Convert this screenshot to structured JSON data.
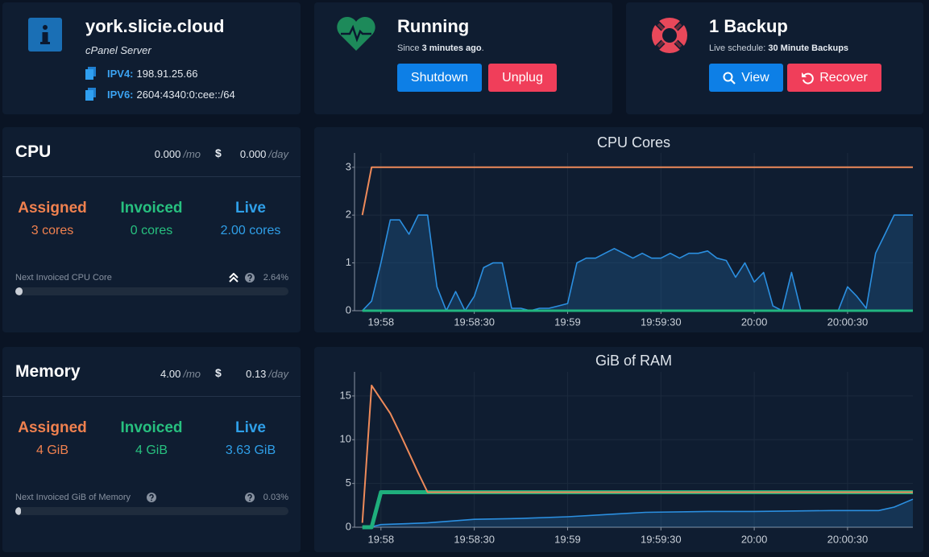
{
  "server": {
    "title": "york.slicie.cloud",
    "subtitle": "cPanel Server",
    "ipv4": {
      "label": "IPV4:",
      "value": "198.91.25.66"
    },
    "ipv6": {
      "label": "IPV6:",
      "value": "2604:4340:0:cee::/64"
    }
  },
  "status": {
    "title": "Running",
    "since_prefix": "Since",
    "since_value": "3 minutes ago",
    "since_suffix": ".",
    "buttons": [
      "Shutdown",
      "Unplug"
    ]
  },
  "backup": {
    "title": "1 Backup",
    "schedule_label": "Live schedule:",
    "schedule_value": "30 Minute Backups",
    "buttons": [
      "View",
      "Recover"
    ]
  },
  "cpu": {
    "title": "CPU",
    "monthly": "0.000",
    "monthly_unit": "/mo",
    "currency": "$",
    "daily": "0.000",
    "daily_unit": "/day",
    "stats": [
      {
        "label": "Assigned",
        "value": "3 cores"
      },
      {
        "label": "Invoiced",
        "value": "0 cores"
      },
      {
        "label": "Live",
        "value": "2.00 cores"
      }
    ],
    "progress": {
      "label": "Next Invoiced CPU Core",
      "value": 2.64,
      "value_label": "2.64%"
    }
  },
  "memory": {
    "title": "Memory",
    "monthly": "4.00",
    "monthly_unit": "/mo",
    "currency": "$",
    "daily": "0.13",
    "daily_unit": "/day",
    "stats": [
      {
        "label": "Assigned",
        "value": "4 GiB"
      },
      {
        "label": "Invoiced",
        "value": "4 GiB"
      },
      {
        "label": "Live",
        "value": "3.63 GiB"
      }
    ],
    "progress": {
      "label": "Next Invoiced GiB of Memory",
      "value": 0.03,
      "value_label": "0.03%"
    }
  },
  "chart_data": [
    {
      "type": "line",
      "title": "CPU Cores",
      "grid": true,
      "xlim": [
        71871.5,
        72051
      ],
      "xticks": [
        {
          "value": 71880,
          "label": "19:58"
        },
        {
          "value": 71910,
          "label": "19:58:30"
        },
        {
          "value": 71940,
          "label": "19:59"
        },
        {
          "value": 71970,
          "label": "19:59:30"
        },
        {
          "value": 72000,
          "label": "20:00"
        },
        {
          "value": 72030,
          "label": "20:00:30"
        }
      ],
      "ylim": [
        0,
        3.3
      ],
      "yticks": [
        0,
        1,
        2,
        3
      ],
      "series": [
        {
          "color": "#2b8fe0",
          "fill": true,
          "line_width": 1.6,
          "x": [
            71874,
            71877,
            71880,
            71883,
            71886,
            71889,
            71892,
            71895,
            71898,
            71901,
            71904,
            71907,
            71910,
            71913,
            71916,
            71919,
            71922,
            71925,
            71928,
            71931,
            71934,
            71937,
            71940,
            71943,
            71946,
            71949,
            71952,
            71955,
            71958,
            71961,
            71964,
            71967,
            71970,
            71973,
            71976,
            71979,
            71982,
            71985,
            71988,
            71991,
            71994,
            71997,
            72000,
            72003,
            72006,
            72009,
            72012,
            72015,
            72018,
            72021,
            72024,
            72027,
            72030,
            72033,
            72036,
            72039,
            72042,
            72045,
            72048,
            72051
          ],
          "values": [
            0,
            0.2,
            1.0,
            1.9,
            1.9,
            1.6,
            2.0,
            2.0,
            0.5,
            0,
            0.4,
            0,
            0.3,
            0.9,
            1.0,
            1.0,
            0.05,
            0.05,
            0,
            0.05,
            0.05,
            0.1,
            0.15,
            1.0,
            1.1,
            1.1,
            1.2,
            1.3,
            1.2,
            1.1,
            1.2,
            1.1,
            1.1,
            1.2,
            1.1,
            1.2,
            1.2,
            1.25,
            1.1,
            1.05,
            0.7,
            1.0,
            0.6,
            0.8,
            0.1,
            0,
            0.8,
            0,
            0,
            0,
            0,
            0,
            0.5,
            0.3,
            0.05,
            1.2,
            1.6,
            2.0,
            2.0,
            2.0
          ]
        },
        {
          "color": "#21b57f",
          "line_width": 3,
          "x": [
            71874,
            72051
          ],
          "values": [
            0,
            0
          ]
        },
        {
          "color": "#ee8a5a",
          "line_width": 2,
          "x": [
            71874,
            71877,
            72051
          ],
          "values": [
            2,
            3,
            3
          ]
        }
      ]
    },
    {
      "type": "line",
      "title": "GiB of RAM",
      "grid": true,
      "xlim": [
        71871.5,
        72051
      ],
      "xticks": [
        {
          "value": 71880,
          "label": "19:58"
        },
        {
          "value": 71910,
          "label": "19:58:30"
        },
        {
          "value": 71940,
          "label": "19:59"
        },
        {
          "value": 71970,
          "label": "19:59:30"
        },
        {
          "value": 72000,
          "label": "20:00"
        },
        {
          "value": 72030,
          "label": "20:00:30"
        }
      ],
      "ylim": [
        0,
        17.75
      ],
      "yticks": [
        0,
        5,
        10,
        15
      ],
      "series": [
        {
          "color": "#2b8fe0",
          "fill": true,
          "line_width": 1.6,
          "x": [
            71877,
            71880,
            71895,
            71910,
            71925,
            71940,
            71955,
            71965,
            71985,
            72000,
            72025,
            72040,
            72045,
            72051
          ],
          "values": [
            0.05,
            0.3,
            0.5,
            0.9,
            1.0,
            1.2,
            1.5,
            1.7,
            1.8,
            1.8,
            1.9,
            1.9,
            2.3,
            3.2
          ]
        },
        {
          "color": "#1fae7c",
          "line_width": 5,
          "x": [
            71874,
            71877,
            71880,
            72051
          ],
          "values": [
            0,
            0,
            4,
            4
          ]
        },
        {
          "color": "#ee8a5a",
          "line_width": 2,
          "x": [
            71874,
            71877,
            71880,
            71883,
            71886,
            71889,
            71892,
            71895,
            72051
          ],
          "values": [
            0.5,
            16.2,
            14.6,
            13,
            10.8,
            8.5,
            6.2,
            4,
            4
          ]
        }
      ]
    }
  ]
}
